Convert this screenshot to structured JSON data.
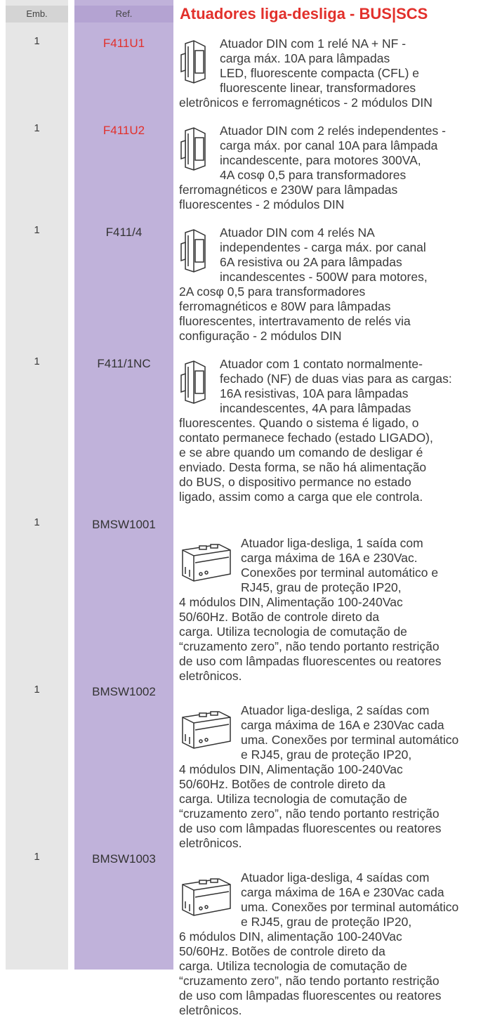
{
  "header": {
    "emb_label": "Emb.",
    "ref_label": "Ref.",
    "title": "Atuadores liga-desliga -  BUS|SCS",
    "title_color": "#e2302b"
  },
  "rows": [
    {
      "emb": "1",
      "ref": "F411U1",
      "ref_color": "#e2302b",
      "text_beside": [
        "Atuador DIN com 1 relé NA + NF -",
        "carga máx. 10A para lâmpadas",
        "LED, fluorescente compacta (CFL) e",
        "fluorescente linear, transformadores"
      ],
      "text_below": [
        "eletrônicos e ferromagnéticos - 2 módulos DIN"
      ]
    },
    {
      "emb": "1",
      "ref": "F411U2",
      "ref_color": "#e2302b",
      "text_beside": [
        "Atuador DIN com 2 relés independentes -",
        "carga máx. por canal 10A para lâmpada",
        "incandescente, para motores 300VA,",
        "4A cosφ 0,5 para transformadores"
      ],
      "text_below": [
        "ferromagnéticos e 230W para lâmpadas",
        "fluorescentes - 2 módulos DIN"
      ]
    },
    {
      "emb": "1",
      "ref": "F411/4",
      "ref_color": "#333333",
      "text_beside": [
        "Atuador DIN com 4 relés NA",
        "independentes - carga máx. por canal",
        "6A resistiva ou 2A para lâmpadas",
        "incandescentes - 500W para motores,"
      ],
      "text_below": [
        "2A cosφ 0,5 para transformadores",
        "ferromagnéticos e 80W para lâmpadas",
        "fluorescentes, intertravamento de relés via",
        "configuração - 2 módulos DIN"
      ]
    },
    {
      "emb": "1",
      "ref": "F411/1NC",
      "ref_color": "#333333",
      "text_beside": [
        "Atuador com 1 contato normalmente-",
        "fechado (NF) de duas vias para as cargas:",
        "16A resistivas, 10A para lâmpadas",
        "incandescentes, 4A para lâmpadas"
      ],
      "text_below": [
        "fluorescentes. Quando o sistema é ligado, o",
        "contato permanece fechado (estado LIGADO),",
        "e se abre quando um comando de desligar é",
        "enviado.  Desta forma, se não há alimentação",
        "do BUS, o dispositivo permance no estado",
        "ligado, assim como a carga que ele controla."
      ]
    },
    {
      "emb": "1",
      "ref": "BMSW1001",
      "ref_color": "#333333",
      "text_beside": [
        "Atuador liga-desliga, 1 saída com",
        "carga máxima de 16A e 230Vac.",
        "Conexões por terminal automático e",
        "RJ45, grau de proteção IP20,"
      ],
      "text_below": [
        "4 módulos DIN, Alimentação 100-240Vac",
        "50/60Hz. Botão de controle direto da",
        "carga. Utiliza tecnologia de comutação de",
        "“cruzamento zero”, não tendo portanto restrição",
        "de uso com lâmpadas fluorescentes ou reatores",
        "eletrônicos."
      ]
    },
    {
      "emb": "1",
      "ref": "BMSW1002",
      "ref_color": "#333333",
      "text_beside": [
        "Atuador liga-desliga, 2 saídas com",
        "carga máxima de 16A e 230Vac cada",
        "uma. Conexões por terminal automático",
        "e RJ45, grau de proteção IP20,"
      ],
      "text_below": [
        "4 módulos DIN, Alimentação 100-240Vac",
        "50/60Hz. Botões de controle direto da",
        "carga. Utiliza tecnologia de comutação de",
        "“cruzamento zero”, não tendo portanto restrição",
        "de uso com lâmpadas fluorescentes ou reatores",
        "eletrônicos."
      ]
    },
    {
      "emb": "1",
      "ref": "BMSW1003",
      "ref_color": "#333333",
      "text_beside": [
        "Atuador liga-desliga, 4 saídas com",
        "carga máxima de 16A e 230Vac cada",
        "uma. Conexões por terminal automático",
        "e RJ45, grau de proteção IP20,"
      ],
      "text_below": [
        "6 módulos DIN, alimentação 100-240Vac",
        "50/60Hz. Botões de controle direto da",
        "carga. Utiliza tecnologia de comutação de",
        "“cruzamento zero”, não tendo portanto restrição",
        "de uso com lâmpadas fluorescentes ou reatores",
        "eletrônicos."
      ]
    }
  ]
}
